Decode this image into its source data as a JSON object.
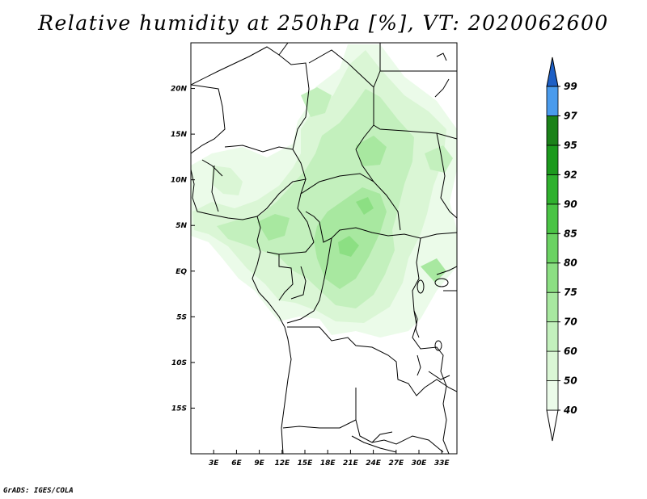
{
  "title": "Relative humidity at 250hPa [%], VT: 2020062600",
  "credit": "GrADS: IGES/COLA",
  "map": {
    "lon_range": [
      0,
      35
    ],
    "lat_range": [
      -20,
      25
    ],
    "lon_ticks": [
      "3E",
      "6E",
      "9E",
      "12E",
      "15E",
      "18E",
      "21E",
      "24E",
      "27E",
      "30E",
      "33E"
    ],
    "lat_ticks": [
      "20N",
      "15N",
      "10N",
      "5N",
      "EQ",
      "5S",
      "10S",
      "15S"
    ]
  },
  "colorbar": {
    "labels": [
      "40",
      "50",
      "60",
      "70",
      "75",
      "80",
      "85",
      "90",
      "92",
      "95",
      "97",
      "99"
    ],
    "colors": [
      "#ebfbe9",
      "#daf6d5",
      "#c3f0bd",
      "#a8e8a0",
      "#8cdf83",
      "#6bd263",
      "#4ac445",
      "#2fb12e",
      "#1c9a1d",
      "#1b8219",
      "#4a9bec",
      "#2b78dd",
      "#1d5fc5"
    ]
  }
}
